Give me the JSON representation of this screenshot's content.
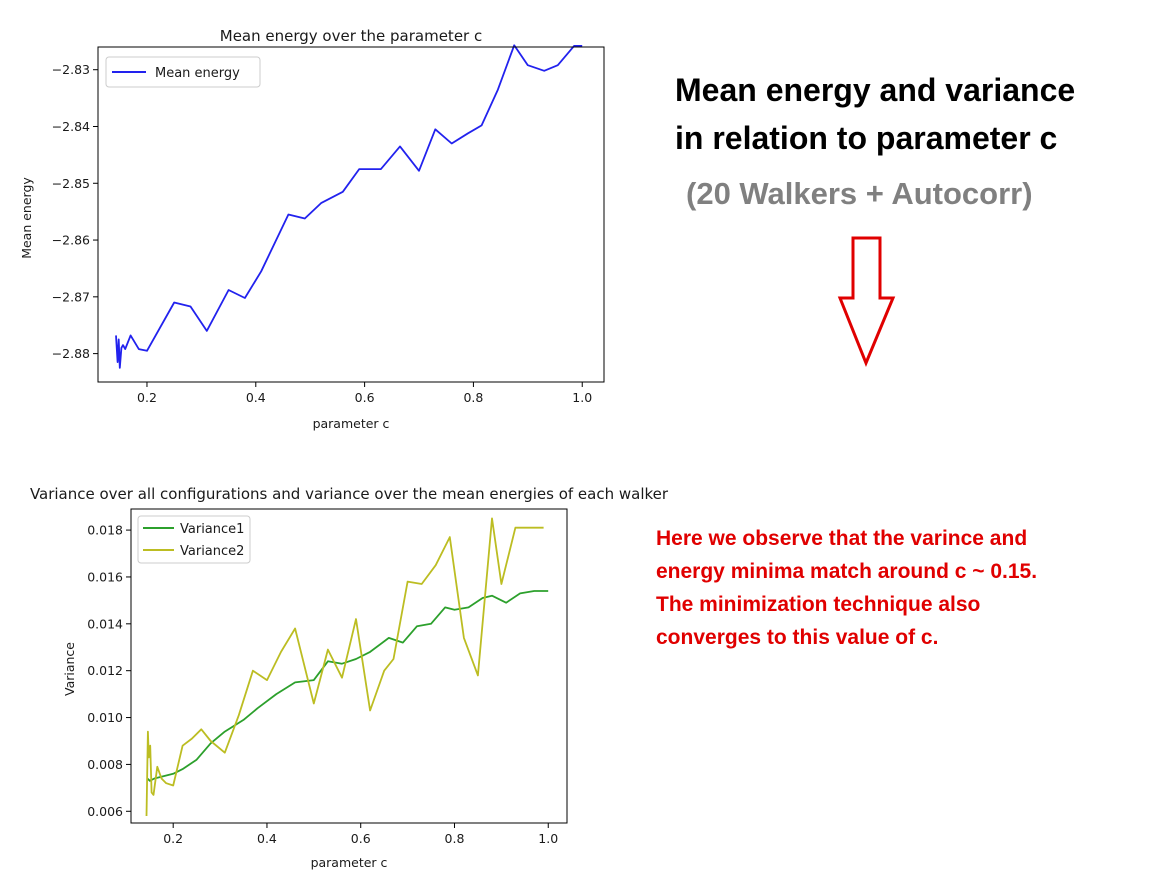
{
  "annotations": {
    "heading_line1": "Mean energy and variance",
    "heading_line2": "in relation to parameter c",
    "subheading": "(20 Walkers + Autocorr)",
    "note_lines": [
      "Here we observe that the varince and",
      "energy minima match around c ~ 0.15.",
      "The minimization technique also",
      "converges to this value of c."
    ],
    "arrow_color": "#e00000",
    "note_color": "#e00000",
    "subheading_color": "#808080"
  },
  "chart_data": [
    {
      "type": "line",
      "title": "Mean energy over the parameter c",
      "xlabel": "parameter c",
      "ylabel": "Mean energy",
      "xlim": [
        0.11,
        1.04
      ],
      "ylim": [
        -2.885,
        -2.826
      ],
      "xticks": [
        0.2,
        0.4,
        0.6,
        0.8,
        1.0
      ],
      "xtick_labels": [
        "0.2",
        "0.4",
        "0.6",
        "0.8",
        "1.0"
      ],
      "yticks": [
        -2.83,
        -2.84,
        -2.85,
        -2.86,
        -2.87,
        -2.88
      ],
      "ytick_labels": [
        "−2.83",
        "−2.84",
        "−2.85",
        "−2.86",
        "−2.87",
        "−2.88"
      ],
      "grid": false,
      "legend_position": "top-left",
      "series": [
        {
          "name": "Mean energy",
          "color": "#2222ee",
          "x": [
            0.143,
            0.146,
            0.148,
            0.15,
            0.153,
            0.156,
            0.16,
            0.17,
            0.185,
            0.2,
            0.25,
            0.28,
            0.31,
            0.35,
            0.38,
            0.41,
            0.46,
            0.49,
            0.52,
            0.56,
            0.59,
            0.63,
            0.665,
            0.7,
            0.73,
            0.76,
            0.79,
            0.815,
            0.845,
            0.875,
            0.9,
            0.93,
            0.955,
            0.985,
            1.0
          ],
          "y": [
            -2.8768,
            -2.8815,
            -2.8775,
            -2.8825,
            -2.879,
            -2.8785,
            -2.8792,
            -2.8768,
            -2.8792,
            -2.8795,
            -2.871,
            -2.8717,
            -2.876,
            -2.8688,
            -2.8702,
            -2.8655,
            -2.8555,
            -2.8562,
            -2.8535,
            -2.8515,
            -2.8475,
            -2.8475,
            -2.8435,
            -2.8478,
            -2.8405,
            -2.843,
            -2.8412,
            -2.8398,
            -2.8335,
            -2.8257,
            -2.8292,
            -2.8302,
            -2.8292,
            -2.8258,
            -2.8258
          ]
        }
      ]
    },
    {
      "type": "line",
      "title": "Variance over all configurations and variance over the mean energies of each walker",
      "xlabel": "parameter c",
      "ylabel": "Variance",
      "xlim": [
        0.11,
        1.04
      ],
      "ylim": [
        0.0055,
        0.0189
      ],
      "xticks": [
        0.2,
        0.4,
        0.6,
        0.8,
        1.0
      ],
      "xtick_labels": [
        "0.2",
        "0.4",
        "0.6",
        "0.8",
        "1.0"
      ],
      "yticks": [
        0.006,
        0.008,
        0.01,
        0.012,
        0.014,
        0.016,
        0.018
      ],
      "ytick_labels": [
        "0.006",
        "0.008",
        "0.010",
        "0.012",
        "0.014",
        "0.016",
        "0.018"
      ],
      "grid": false,
      "legend_position": "top-left",
      "series": [
        {
          "name": "Variance1",
          "color": "#2ca02c",
          "x": [
            0.145,
            0.15,
            0.16,
            0.18,
            0.2,
            0.22,
            0.25,
            0.28,
            0.31,
            0.35,
            0.38,
            0.42,
            0.46,
            0.5,
            0.53,
            0.56,
            0.59,
            0.62,
            0.66,
            0.69,
            0.72,
            0.75,
            0.78,
            0.8,
            0.83,
            0.86,
            0.88,
            0.91,
            0.94,
            0.97,
            1.0
          ],
          "y": [
            0.0074,
            0.0073,
            0.0074,
            0.0075,
            0.0076,
            0.0078,
            0.0082,
            0.0089,
            0.0094,
            0.0099,
            0.0104,
            0.011,
            0.0115,
            0.0116,
            0.0124,
            0.0123,
            0.0125,
            0.0128,
            0.0134,
            0.0132,
            0.0139,
            0.014,
            0.0147,
            0.0146,
            0.0147,
            0.0151,
            0.0152,
            0.0149,
            0.0153,
            0.0154,
            0.0154
          ]
        },
        {
          "name": "Variance2",
          "color": "#bcbd22",
          "x": [
            0.143,
            0.146,
            0.148,
            0.151,
            0.154,
            0.158,
            0.166,
            0.175,
            0.185,
            0.2,
            0.22,
            0.24,
            0.26,
            0.28,
            0.31,
            0.34,
            0.37,
            0.4,
            0.43,
            0.46,
            0.5,
            0.53,
            0.56,
            0.59,
            0.62,
            0.65,
            0.67,
            0.7,
            0.73,
            0.76,
            0.79,
            0.82,
            0.85,
            0.88,
            0.9,
            0.93,
            0.96,
            0.99
          ],
          "y": [
            0.0058,
            0.0094,
            0.0083,
            0.0088,
            0.0068,
            0.0067,
            0.0079,
            0.0074,
            0.0072,
            0.0071,
            0.0088,
            0.0091,
            0.0095,
            0.009,
            0.0085,
            0.0101,
            0.012,
            0.0116,
            0.0128,
            0.0138,
            0.0106,
            0.0129,
            0.0117,
            0.0142,
            0.0103,
            0.012,
            0.0125,
            0.0158,
            0.0157,
            0.0165,
            0.0177,
            0.0134,
            0.0118,
            0.0185,
            0.0157,
            0.0181,
            0.0181,
            0.0181
          ]
        }
      ]
    }
  ]
}
